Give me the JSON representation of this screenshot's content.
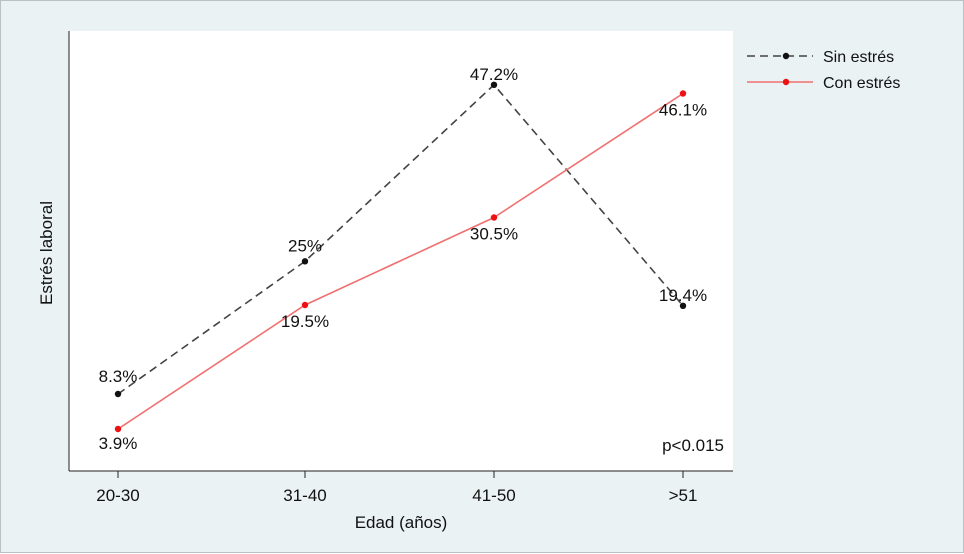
{
  "chart_data": {
    "type": "line",
    "categories": [
      "20-30",
      "31-40",
      "41-50",
      ">51"
    ],
    "xlabel": "Edad (años)",
    "ylabel": "Estrés laboral",
    "ylim": [
      0,
      50
    ],
    "grid": false,
    "legend_position": "top-right",
    "annotation": "p<0.015",
    "series": [
      {
        "name": "Sin estrés",
        "values": [
          8.3,
          25,
          47.2,
          19.4
        ],
        "labels": [
          "8.3%",
          "25%",
          "47.2%",
          "19.4%"
        ],
        "color": "#444444",
        "marker_color": "#111111",
        "dash": "dashed"
      },
      {
        "name": "Con estrés",
        "values": [
          3.9,
          19.5,
          30.5,
          46.1
        ],
        "labels": [
          "3.9%",
          "19.5%",
          "30.5%",
          "46.1%"
        ],
        "color": "#f07070",
        "marker_color": "#ee1111",
        "dash": "solid"
      }
    ]
  }
}
